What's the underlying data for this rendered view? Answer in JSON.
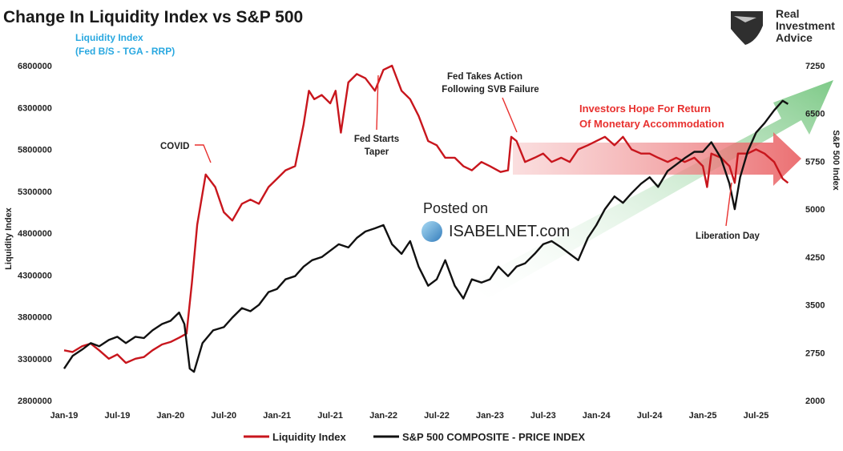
{
  "header": {
    "title": "Change In Liquidity Index vs S&P 500",
    "subtitle_line1": "Liquidity Index",
    "subtitle_line2": "(Fed B/S - TGA - RRP)"
  },
  "brand": {
    "line1": "Real",
    "line2": "Investment",
    "line3": "Advice"
  },
  "watermark": {
    "line1": "Posted on",
    "line2": "ISABELNET.com"
  },
  "annotations": {
    "covid": "COVID",
    "taper_line1": "Fed Starts",
    "taper_line2": "Taper",
    "svb_line1": "Fed Takes Action",
    "svb_line2": "Following SVB Failure",
    "hope_line1": "Investors Hope For Return",
    "hope_line2": "Of Monetary Accommodation",
    "liberation": "Liberation Day"
  },
  "colors": {
    "liquidity": "#c8161d",
    "sp500": "#111111",
    "title_blue": "#29a8e0",
    "annotation_red": "#e8312f"
  },
  "chart_data": {
    "type": "line",
    "title": "Change In Liquidity Index vs S&P 500",
    "x_ticks": [
      "Jan-19",
      "Jul-19",
      "Jan-20",
      "Jul-20",
      "Jan-21",
      "Jul-21",
      "Jan-22",
      "Jul-22",
      "Jan-23",
      "Jul-23",
      "Jan-24",
      "Jul-24",
      "Jan-25",
      "Jul-25"
    ],
    "x_range": [
      2019.0,
      2025.85
    ],
    "left_axis": {
      "label": "Liquidity Index",
      "min": 2800000,
      "max": 6800000,
      "ticks": [
        "2800000",
        "3300000",
        "3800000",
        "4300000",
        "4800000",
        "5300000",
        "5800000",
        "6300000",
        "6800000"
      ]
    },
    "right_axis": {
      "label": "S&P 500 Index",
      "min": 2000,
      "max": 7250,
      "ticks": [
        "2000",
        "2750",
        "3500",
        "4250",
        "5000",
        "5750",
        "6500",
        "7250"
      ]
    },
    "series": [
      {
        "name": "Liquidity Index",
        "axis": "left",
        "points": [
          [
            2019.0,
            3400000
          ],
          [
            2019.08,
            3380000
          ],
          [
            2019.17,
            3450000
          ],
          [
            2019.25,
            3480000
          ],
          [
            2019.33,
            3400000
          ],
          [
            2019.42,
            3300000
          ],
          [
            2019.5,
            3350000
          ],
          [
            2019.58,
            3250000
          ],
          [
            2019.67,
            3300000
          ],
          [
            2019.75,
            3320000
          ],
          [
            2019.83,
            3400000
          ],
          [
            2019.92,
            3470000
          ],
          [
            2020.0,
            3500000
          ],
          [
            2020.08,
            3550000
          ],
          [
            2020.15,
            3600000
          ],
          [
            2020.2,
            4200000
          ],
          [
            2020.25,
            4900000
          ],
          [
            2020.33,
            5500000
          ],
          [
            2020.42,
            5350000
          ],
          [
            2020.5,
            5050000
          ],
          [
            2020.58,
            4950000
          ],
          [
            2020.67,
            5150000
          ],
          [
            2020.75,
            5200000
          ],
          [
            2020.83,
            5150000
          ],
          [
            2020.92,
            5350000
          ],
          [
            2021.0,
            5450000
          ],
          [
            2021.08,
            5550000
          ],
          [
            2021.17,
            5600000
          ],
          [
            2021.25,
            6100000
          ],
          [
            2021.3,
            6500000
          ],
          [
            2021.35,
            6400000
          ],
          [
            2021.42,
            6450000
          ],
          [
            2021.5,
            6350000
          ],
          [
            2021.55,
            6500000
          ],
          [
            2021.6,
            6000000
          ],
          [
            2021.67,
            6600000
          ],
          [
            2021.75,
            6700000
          ],
          [
            2021.83,
            6650000
          ],
          [
            2021.92,
            6500000
          ],
          [
            2022.0,
            6750000
          ],
          [
            2022.08,
            6800000
          ],
          [
            2022.17,
            6500000
          ],
          [
            2022.25,
            6400000
          ],
          [
            2022.33,
            6200000
          ],
          [
            2022.42,
            5900000
          ],
          [
            2022.5,
            5850000
          ],
          [
            2022.58,
            5700000
          ],
          [
            2022.67,
            5700000
          ],
          [
            2022.75,
            5600000
          ],
          [
            2022.83,
            5550000
          ],
          [
            2022.92,
            5650000
          ],
          [
            2023.0,
            5600000
          ],
          [
            2023.1,
            5530000
          ],
          [
            2023.17,
            5550000
          ],
          [
            2023.2,
            5950000
          ],
          [
            2023.25,
            5900000
          ],
          [
            2023.33,
            5650000
          ],
          [
            2023.42,
            5700000
          ],
          [
            2023.5,
            5750000
          ],
          [
            2023.58,
            5650000
          ],
          [
            2023.67,
            5700000
          ],
          [
            2023.75,
            5650000
          ],
          [
            2023.83,
            5800000
          ],
          [
            2023.92,
            5850000
          ],
          [
            2024.0,
            5900000
          ],
          [
            2024.08,
            5950000
          ],
          [
            2024.17,
            5850000
          ],
          [
            2024.25,
            5950000
          ],
          [
            2024.33,
            5800000
          ],
          [
            2024.42,
            5750000
          ],
          [
            2024.5,
            5750000
          ],
          [
            2024.58,
            5700000
          ],
          [
            2024.67,
            5650000
          ],
          [
            2024.75,
            5700000
          ],
          [
            2024.83,
            5650000
          ],
          [
            2024.92,
            5700000
          ],
          [
            2025.0,
            5600000
          ],
          [
            2025.04,
            5350000
          ],
          [
            2025.08,
            5750000
          ],
          [
            2025.17,
            5700000
          ],
          [
            2025.25,
            5600000
          ],
          [
            2025.3,
            5400000
          ],
          [
            2025.33,
            5750000
          ],
          [
            2025.42,
            5750000
          ],
          [
            2025.5,
            5800000
          ],
          [
            2025.58,
            5750000
          ],
          [
            2025.67,
            5650000
          ],
          [
            2025.75,
            5450000
          ],
          [
            2025.8,
            5400000
          ]
        ]
      },
      {
        "name": "S&P 500 COMPOSITE - PRICE INDEX",
        "axis": "right",
        "points": [
          [
            2019.0,
            2500
          ],
          [
            2019.08,
            2700
          ],
          [
            2019.17,
            2800
          ],
          [
            2019.25,
            2900
          ],
          [
            2019.33,
            2850
          ],
          [
            2019.42,
            2950
          ],
          [
            2019.5,
            3000
          ],
          [
            2019.58,
            2900
          ],
          [
            2019.67,
            3000
          ],
          [
            2019.75,
            2980
          ],
          [
            2019.83,
            3100
          ],
          [
            2019.92,
            3200
          ],
          [
            2020.0,
            3250
          ],
          [
            2020.08,
            3380
          ],
          [
            2020.13,
            3200
          ],
          [
            2020.18,
            2500
          ],
          [
            2020.22,
            2450
          ],
          [
            2020.3,
            2900
          ],
          [
            2020.4,
            3100
          ],
          [
            2020.5,
            3150
          ],
          [
            2020.58,
            3300
          ],
          [
            2020.67,
            3450
          ],
          [
            2020.75,
            3400
          ],
          [
            2020.83,
            3500
          ],
          [
            2020.92,
            3700
          ],
          [
            2021.0,
            3750
          ],
          [
            2021.08,
            3900
          ],
          [
            2021.17,
            3950
          ],
          [
            2021.25,
            4100
          ],
          [
            2021.33,
            4200
          ],
          [
            2021.42,
            4250
          ],
          [
            2021.5,
            4350
          ],
          [
            2021.58,
            4450
          ],
          [
            2021.67,
            4400
          ],
          [
            2021.75,
            4550
          ],
          [
            2021.83,
            4650
          ],
          [
            2021.92,
            4700
          ],
          [
            2022.0,
            4750
          ],
          [
            2022.08,
            4450
          ],
          [
            2022.17,
            4300
          ],
          [
            2022.25,
            4500
          ],
          [
            2022.33,
            4100
          ],
          [
            2022.42,
            3800
          ],
          [
            2022.5,
            3900
          ],
          [
            2022.58,
            4200
          ],
          [
            2022.67,
            3800
          ],
          [
            2022.75,
            3600
          ],
          [
            2022.83,
            3900
          ],
          [
            2022.92,
            3850
          ],
          [
            2023.0,
            3900
          ],
          [
            2023.08,
            4100
          ],
          [
            2023.17,
            3950
          ],
          [
            2023.25,
            4100
          ],
          [
            2023.33,
            4150
          ],
          [
            2023.42,
            4300
          ],
          [
            2023.5,
            4450
          ],
          [
            2023.58,
            4500
          ],
          [
            2023.67,
            4400
          ],
          [
            2023.75,
            4300
          ],
          [
            2023.83,
            4200
          ],
          [
            2023.92,
            4550
          ],
          [
            2024.0,
            4750
          ],
          [
            2024.08,
            5000
          ],
          [
            2024.17,
            5200
          ],
          [
            2024.25,
            5100
          ],
          [
            2024.33,
            5250
          ],
          [
            2024.42,
            5400
          ],
          [
            2024.5,
            5500
          ],
          [
            2024.58,
            5350
          ],
          [
            2024.67,
            5600
          ],
          [
            2024.75,
            5700
          ],
          [
            2024.83,
            5800
          ],
          [
            2024.92,
            5900
          ],
          [
            2025.0,
            5900
          ],
          [
            2025.08,
            6050
          ],
          [
            2025.17,
            5800
          ],
          [
            2025.25,
            5400
          ],
          [
            2025.3,
            5000
          ],
          [
            2025.35,
            5500
          ],
          [
            2025.42,
            5900
          ],
          [
            2025.5,
            6200
          ],
          [
            2025.58,
            6350
          ],
          [
            2025.67,
            6550
          ],
          [
            2025.75,
            6700
          ],
          [
            2025.8,
            6650
          ]
        ]
      }
    ],
    "legend": [
      "Liquidity Index",
      "S&P 500 COMPOSITE - PRICE INDEX"
    ],
    "legend_position": "bottom-center",
    "grid": false
  }
}
